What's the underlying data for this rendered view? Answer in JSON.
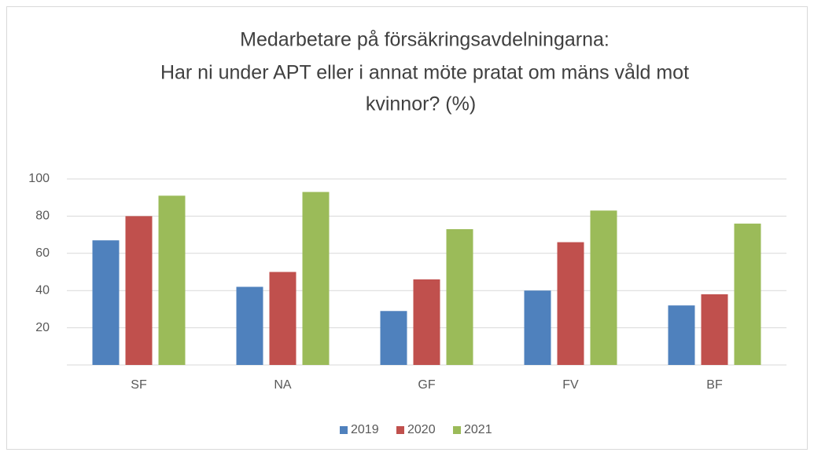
{
  "chart_data": {
    "type": "bar",
    "title": [
      "Medarbetare på försäkringsavdelningarna:",
      "Har ni under APT eller i annat möte pratat om mäns våld mot",
      "kvinnor? (%)"
    ],
    "categories": [
      "SF",
      "NA",
      "GF",
      "FV",
      "BF"
    ],
    "series": [
      {
        "name": "2019",
        "color": "#4f81bd",
        "values": [
          67,
          42,
          29,
          40,
          32
        ]
      },
      {
        "name": "2020",
        "color": "#c0504d",
        "values": [
          80,
          50,
          46,
          66,
          38
        ]
      },
      {
        "name": "2021",
        "color": "#9bbb59",
        "values": [
          91,
          93,
          73,
          83,
          76
        ]
      }
    ],
    "ylim": [
      0,
      100
    ],
    "yticks": [
      20,
      40,
      60,
      80,
      100
    ],
    "grid": true,
    "legend": "bottom"
  }
}
